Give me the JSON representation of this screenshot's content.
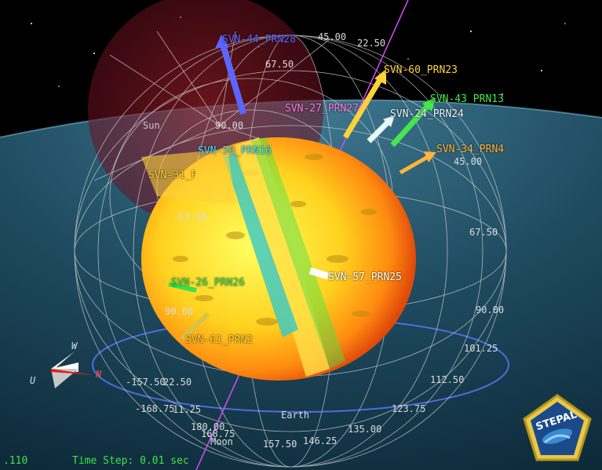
{
  "satellites": [
    {
      "label": "SVN-60_PRN23",
      "color": "#ffd23a"
    },
    {
      "label": "SVN-43_PRN13",
      "color": "#45e84a"
    },
    {
      "label": "SVN-24_PRN24",
      "color": "#e8f6ff"
    },
    {
      "label": "SVN-34_PRN4",
      "color": "#ffb43a"
    },
    {
      "label": "SVN-27_PRN27",
      "color": "#ff7ad8"
    },
    {
      "label": "SVN-56_PRN16",
      "color": "#4ee0ff"
    },
    {
      "label": "SVN-31_PRN31",
      "color": "#ffd23a"
    },
    {
      "label": "SVN-61_PRN2",
      "color": "#ffd23a"
    },
    {
      "label": "SVN-44_PRN28",
      "color": "#5a66ff"
    },
    {
      "label": "SVN-57_PRN25",
      "color": "#ffffff"
    },
    {
      "label": "SVN-26_PRN26",
      "color": "#39e04a"
    },
    {
      "label": "SVN-38_PRN17",
      "color": "#ffd23a"
    }
  ],
  "bodies": {
    "sun": "Sun",
    "earth": "Earth",
    "moon": "Moon"
  },
  "grid_labels": {
    "g1": "45.00",
    "g2": "22.50",
    "g3": "67.50",
    "g4": "90.00",
    "g5": "45.00",
    "g6": "67.50",
    "g7": "90.00",
    "g8": "101.25",
    "g9": "112.50",
    "g10": "123.75",
    "g11": "135.00",
    "g12": "146.25",
    "g13": "157.50",
    "g14": "168.75",
    "g15": "180.00",
    "g16": "-157.50",
    "g17": "22.50",
    "g18": "-168.75",
    "g19": "11.25",
    "g20": "-67.50",
    "g21": "90.00"
  },
  "axes": {
    "w": "W",
    "n": "N",
    "u": "U"
  },
  "status": {
    "time_value": ".110",
    "time_step": "Time Step: 0.01 sec"
  },
  "logo": {
    "text": "STEPAL"
  }
}
